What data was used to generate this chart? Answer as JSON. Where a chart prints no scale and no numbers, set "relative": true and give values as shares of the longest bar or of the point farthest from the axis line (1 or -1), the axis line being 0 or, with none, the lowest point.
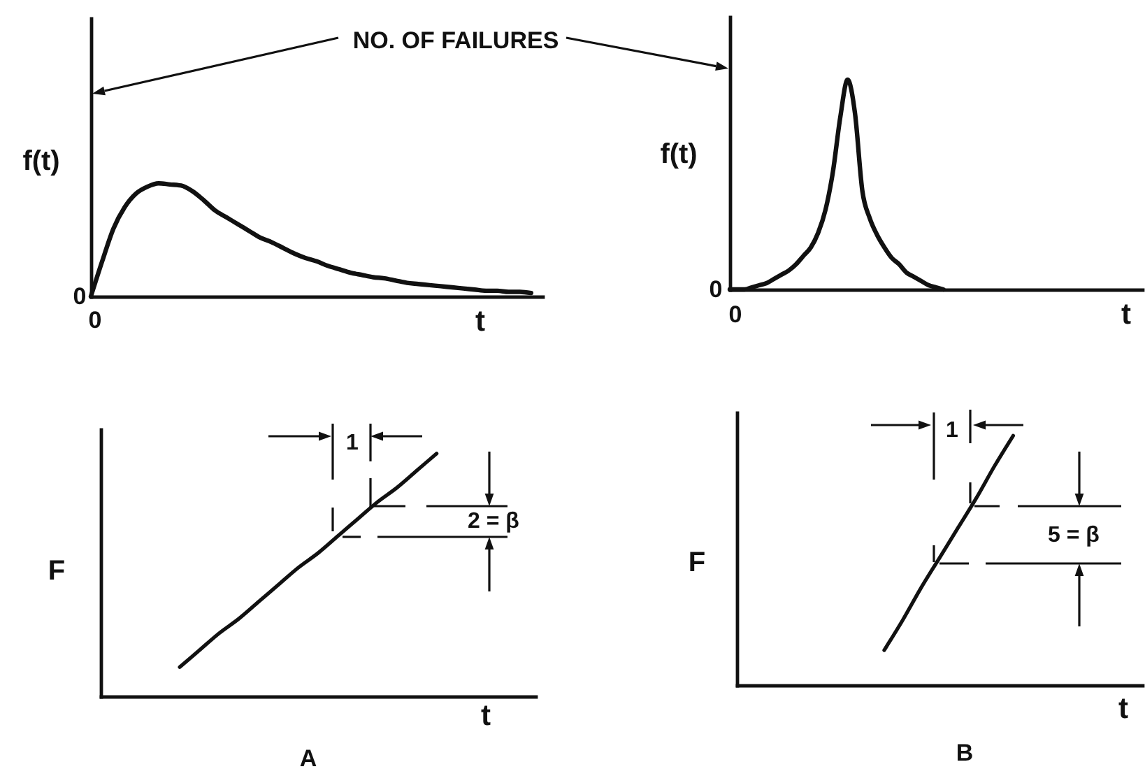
{
  "chart_data": [
    {
      "type": "line",
      "xlabel": "t",
      "ylabel": "f(t)",
      "relative": true,
      "color": "#111111",
      "categories": [
        null,
        null,
        null,
        null,
        null,
        null,
        null,
        null,
        null,
        null,
        null,
        null,
        null,
        null,
        null,
        null,
        null,
        null,
        null,
        null,
        null,
        null,
        null,
        null,
        null,
        null,
        null,
        null,
        null,
        null,
        null,
        null,
        null,
        null,
        null,
        null,
        null,
        null,
        null,
        null,
        null
      ],
      "values": [
        0,
        0.31,
        0.6,
        0.79,
        0.91,
        0.97,
        1,
        0.99,
        0.98,
        0.93,
        0.85,
        0.76,
        0.7,
        0.64,
        0.58,
        0.52,
        0.48,
        0.43,
        0.38,
        0.34,
        0.31,
        0.27,
        0.24,
        0.21,
        0.19,
        0.17,
        0.16,
        0.14,
        0.12,
        0.11,
        0.1,
        0.09,
        0.08,
        0.07,
        0.06,
        0.05,
        0.05,
        0.04,
        0.04,
        0.03,
        null
      ],
      "annotations": [
        "0",
        "0",
        "NO. OF FAILURES"
      ]
    },
    {
      "type": "line",
      "xlabel": "t",
      "ylabel": "f(t)",
      "relative": true,
      "color": "#111111",
      "categories": [
        null,
        null,
        null,
        null,
        null,
        null,
        null,
        null,
        null,
        null,
        null,
        null,
        null,
        null,
        null,
        null,
        null,
        null,
        null,
        null,
        null,
        null,
        null,
        null,
        null,
        null,
        null,
        null,
        null,
        null,
        null,
        null,
        null,
        null,
        null,
        null,
        null,
        null,
        null,
        null,
        null,
        null,
        null,
        null,
        null,
        null,
        null,
        null,
        null,
        null,
        null,
        null,
        null,
        null,
        null,
        null,
        null
      ],
      "values": [
        0,
        0,
        0,
        0.01,
        0.02,
        0.03,
        0.05,
        0.07,
        0.09,
        0.12,
        0.16,
        0.2,
        0.27,
        0.38,
        0.56,
        0.82,
        1,
        0.84,
        0.47,
        0.34,
        0.26,
        0.2,
        0.15,
        0.12,
        0.08,
        0.06,
        0.04,
        0.02,
        0.01,
        0,
        null,
        null,
        null,
        null,
        null,
        null,
        null,
        null,
        null,
        null,
        null,
        null,
        null,
        null,
        null,
        null,
        null,
        null,
        null,
        null,
        null,
        null,
        null,
        null,
        null,
        null,
        null
      ],
      "annotations": [
        "0",
        "0"
      ]
    },
    {
      "type": "line",
      "title": "A",
      "xlabel": "t",
      "ylabel": "F",
      "relative": true,
      "color": "#111111",
      "categories": [
        null,
        null,
        null,
        null,
        null,
        null,
        null,
        null,
        null,
        null,
        null,
        null,
        null,
        null,
        null,
        null,
        null,
        null,
        null,
        null,
        null,
        null,
        null
      ],
      "values": [
        null,
        null,
        null,
        null,
        0.12,
        0.19,
        0.26,
        0.32,
        0.39,
        0.46,
        0.53,
        0.59,
        0.66,
        0.73,
        0.8,
        0.86,
        0.93,
        1,
        null,
        null,
        null,
        null,
        null
      ],
      "annotations": [
        "1",
        "2 = β"
      ]
    },
    {
      "type": "line",
      "title": "B",
      "xlabel": "t",
      "ylabel": "F",
      "relative": true,
      "color": "#111111",
      "categories": [
        null,
        null,
        null,
        null,
        null,
        null,
        null,
        null,
        null,
        null,
        null,
        null,
        null,
        null,
        null,
        null,
        null,
        null,
        null,
        null,
        null,
        null,
        null
      ],
      "values": [
        null,
        null,
        null,
        null,
        null,
        null,
        null,
        null,
        0.14,
        0.26,
        0.39,
        0.51,
        0.63,
        0.75,
        0.88,
        1,
        null,
        null,
        null,
        null,
        null,
        null,
        null
      ],
      "annotations": [
        "1",
        "5 = β"
      ]
    }
  ]
}
